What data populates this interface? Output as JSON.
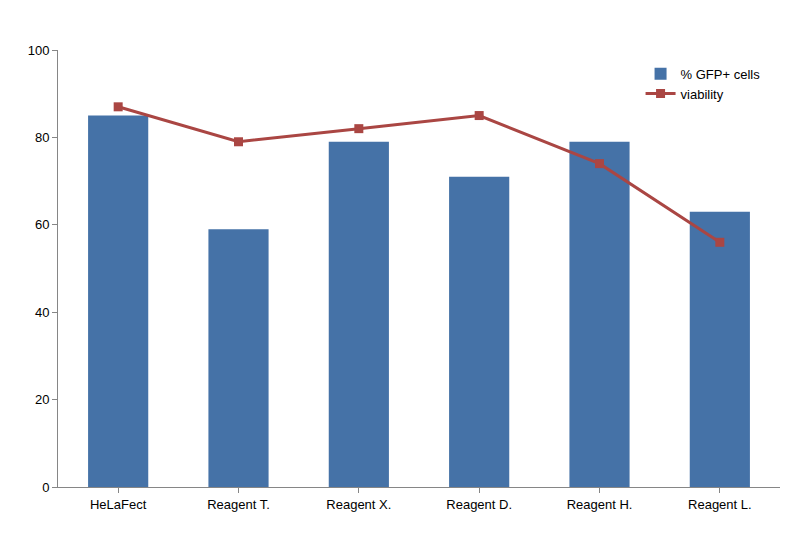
{
  "chart_data": {
    "type": "bar",
    "categories": [
      "HeLaFect",
      "Reagent T.",
      "Reagent X.",
      "Reagent D.",
      "Reagent H.",
      "Reagent L."
    ],
    "series": [
      {
        "name": "% GFP+ cells",
        "type": "bar",
        "color": "#4572A7",
        "values": [
          85,
          59,
          79,
          71,
          79,
          63
        ]
      },
      {
        "name": "viability",
        "type": "line",
        "color": "#AA4643",
        "marker": "square",
        "line_style": "solid",
        "values": [
          87,
          79,
          82,
          85,
          74,
          56
        ]
      }
    ],
    "ylim": [
      0,
      100
    ],
    "yticks": [
      0,
      20,
      40,
      60,
      80,
      100
    ],
    "grid": false,
    "legend": "top right"
  }
}
